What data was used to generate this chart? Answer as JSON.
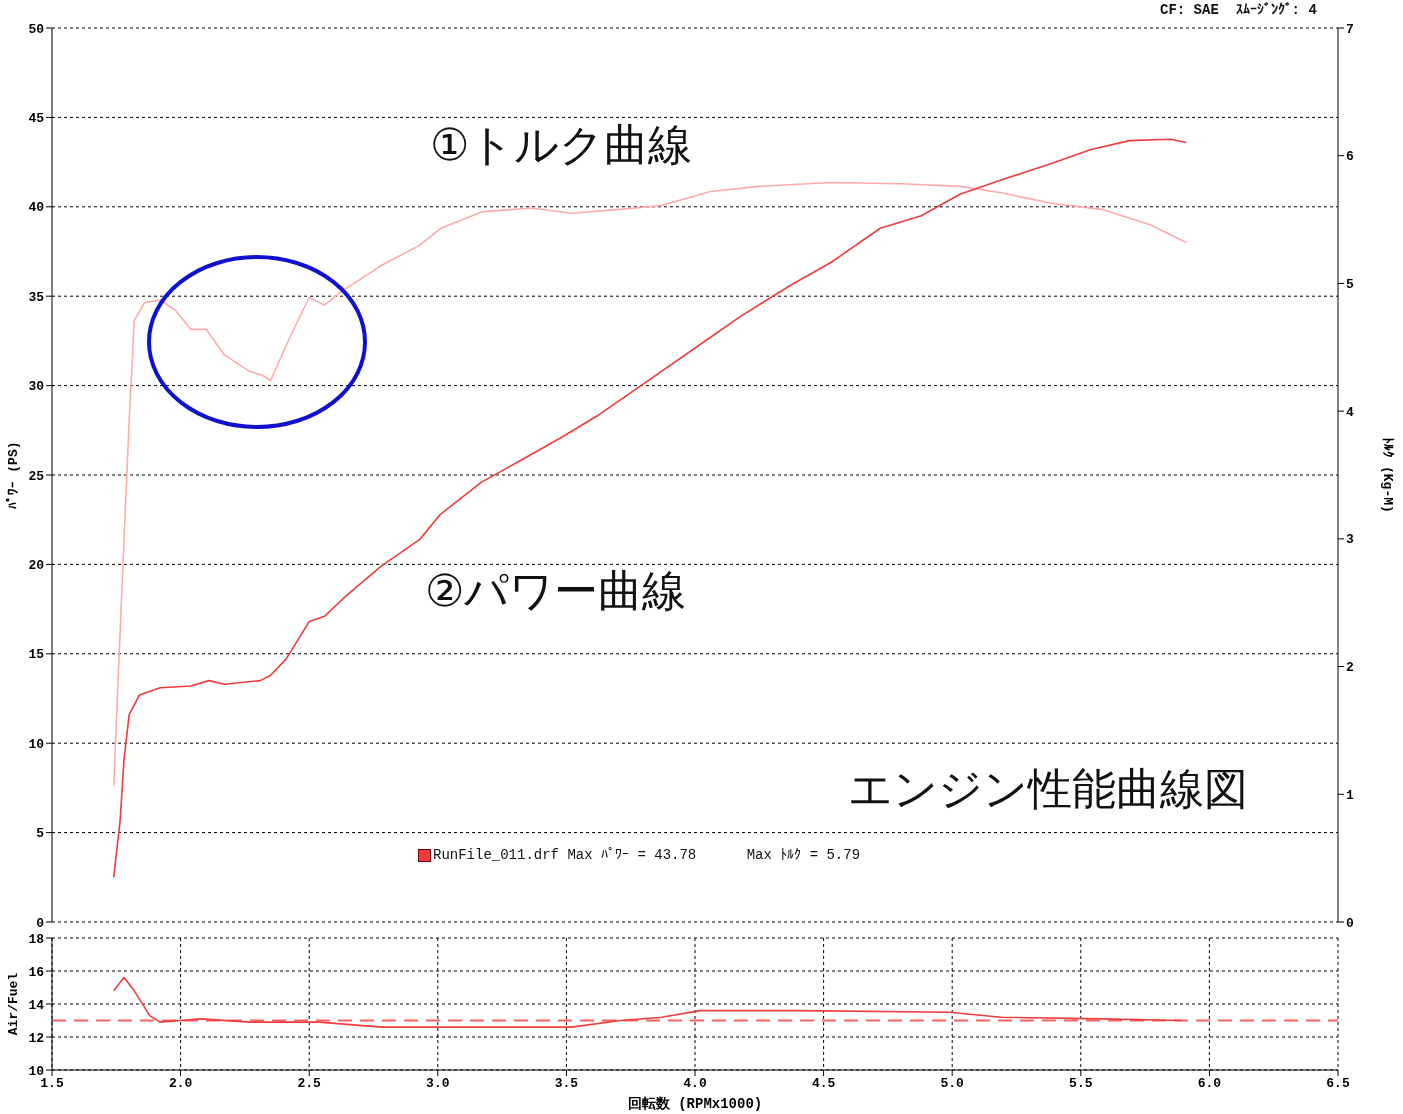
{
  "chart_data": [
    {
      "type": "line",
      "ylabel": "ﾊﾟﾜｰ (PS)",
      "y2label": "ﾄﾙｸ (Kg-M)",
      "annotations": [
        "CF: SAE  ｽﾑｰｼﾞﾝｸﾞ: 4",
        "RunFile_011.drf Max ﾊﾟﾜｰ = 43.78      Max ﾄﾙｸ = 5.79",
        "エンジン性能曲線図"
      ],
      "xlim": [
        1.5,
        6.5
      ],
      "xticks": [
        1.5,
        2,
        2.5,
        3,
        3.5,
        4,
        4.5,
        5,
        5.5,
        6,
        6.5
      ],
      "ylim": [
        0,
        50
      ],
      "yticks": [
        0,
        5,
        10,
        15,
        20,
        25,
        30,
        35,
        40,
        45,
        50
      ],
      "y2lim": [
        0,
        7
      ],
      "y2ticks": [
        0,
        1,
        2,
        3,
        4,
        5,
        6,
        7
      ],
      "grid": true,
      "legend": false,
      "tick_labels": "y",
      "marker": "none",
      "line_style": "solid",
      "series": [
        {
          "name": "①トルク曲線",
          "color": "#ffaaaa",
          "axis": "y2",
          "x": [
            1.74,
            1.77,
            1.8,
            1.82,
            1.86,
            1.92,
            1.98,
            2.04,
            2.1,
            2.17,
            2.27,
            2.32,
            2.35,
            2.43,
            2.5,
            2.56,
            2.62,
            2.78,
            2.93,
            3.01,
            3.17,
            3.36,
            3.52,
            3.71,
            3.87,
            4.06,
            4.25,
            4.53,
            4.8,
            5.03,
            5.19,
            5.38,
            5.58,
            5.77,
            5.91
          ],
          "values": [
            1.07,
            2.52,
            3.93,
            4.71,
            4.85,
            4.87,
            4.79,
            4.64,
            4.64,
            4.44,
            4.31,
            4.28,
            4.24,
            4.6,
            4.89,
            4.83,
            4.93,
            5.14,
            5.3,
            5.43,
            5.56,
            5.59,
            5.55,
            5.58,
            5.61,
            5.72,
            5.76,
            5.79,
            5.78,
            5.76,
            5.71,
            5.63,
            5.58,
            5.46,
            5.32
          ]
        },
        {
          "name": "②パワー曲線",
          "color": "#f03c3c",
          "x": [
            1.74,
            1.765,
            1.78,
            1.8,
            1.84,
            1.92,
            2.04,
            2.11,
            2.17,
            2.31,
            2.35,
            2.41,
            2.5,
            2.56,
            2.64,
            2.78,
            2.93,
            3.01,
            3.17,
            3.32,
            3.48,
            3.63,
            3.79,
            4.02,
            4.18,
            4.37,
            4.53,
            4.72,
            4.88,
            5.03,
            5.19,
            5.38,
            5.54,
            5.69,
            5.85,
            5.91
          ],
          "values": [
            2.5,
            5.7,
            9.1,
            11.6,
            12.7,
            13.1,
            13.2,
            13.5,
            13.3,
            13.5,
            13.8,
            14.7,
            16.8,
            17.1,
            18.2,
            19.9,
            21.4,
            22.8,
            24.6,
            25.8,
            27.1,
            28.4,
            30,
            32.3,
            33.9,
            35.6,
            36.9,
            38.8,
            39.5,
            40.7,
            41.5,
            42.4,
            43.2,
            43.7,
            43.78,
            43.6
          ]
        }
      ]
    },
    {
      "type": "line",
      "xlabel": "回転数 (RPMx1000)",
      "ylabel": "Air/Fuel",
      "xlim": [
        1.5,
        6.5
      ],
      "xticks": [
        1.5,
        {
          "value": 2,
          "label": "2.0"
        },
        2.5,
        {
          "value": 3,
          "label": "3.0"
        },
        3.5,
        {
          "value": 4,
          "label": "4.0"
        },
        4.5,
        {
          "value": 5,
          "label": "5.0"
        },
        5.5,
        {
          "value": 6,
          "label": "6.0"
        },
        6.5
      ],
      "ylim": [
        10,
        18
      ],
      "yticks": [
        10,
        12,
        14,
        16,
        18
      ],
      "grid": true,
      "legend": false,
      "marker": "none",
      "line_style": "solid",
      "ref_lines": [
        {
          "axis": "y",
          "value": 13,
          "color": "#ff6060",
          "line_style": "dashed"
        }
      ],
      "series": [
        {
          "color": "#f03c3c",
          "x": [
            1.74,
            1.78,
            1.82,
            1.88,
            1.92,
            2.0,
            2.08,
            2.27,
            2.54,
            2.78,
            3.24,
            3.52,
            3.71,
            3.87,
            4.02,
            4.41,
            4.99,
            5.19,
            5.58,
            5.89
          ],
          "values": [
            14.8,
            15.6,
            14.8,
            13.3,
            12.9,
            13,
            13.1,
            12.9,
            12.9,
            12.6,
            12.6,
            12.6,
            13,
            13.2,
            13.6,
            13.6,
            13.5,
            13.2,
            13.1,
            13
          ]
        }
      ]
    }
  ]
}
